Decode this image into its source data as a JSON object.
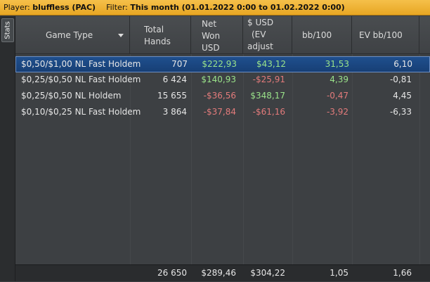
{
  "filter_bar": {
    "player_label": "Player:",
    "player_value": "bluffless (PAC)",
    "filter_label": "Filter:",
    "filter_value": "This month (01.01.2022 0:00 to 01.02.2022 0:00)"
  },
  "side_tabs": {
    "stats": "Stats"
  },
  "columns": {
    "game_type": "Game Type",
    "total_hands_1": "Total",
    "total_hands_2": "Hands",
    "net_won_1": "Net",
    "net_won_2": "Won",
    "net_won_3": "USD",
    "ev_usd_1": "$ USD",
    "ev_usd_2": "(EV",
    "ev_usd_3": "adjust",
    "bb100": "bb/100",
    "ev_bb100": "EV bb/100"
  },
  "rows": [
    {
      "game": "$0,50/$1,00 NL Fast Holdem",
      "hands": "707",
      "net_won": "$222,93",
      "ev_usd": "$43,12",
      "bb100": "31,53",
      "ev_bb100": "6,10"
    },
    {
      "game": "$0,25/$0,50 NL Fast Holdem",
      "hands": "6 424",
      "net_won": "$140,93",
      "ev_usd": "-$25,91",
      "bb100": "4,39",
      "ev_bb100": "-0,81"
    },
    {
      "game": "$0,25/$0,50 NL Holdem",
      "hands": "15 655",
      "net_won": "-$36,56",
      "ev_usd": "$348,17",
      "bb100": "-0,47",
      "ev_bb100": "4,45"
    },
    {
      "game": "$0,10/$0,25 NL Fast Holdem",
      "hands": "3 864",
      "net_won": "-$37,84",
      "ev_usd": "-$61,16",
      "bb100": "-3,92",
      "ev_bb100": "-6,33"
    }
  ],
  "totals": {
    "hands": "26 650",
    "net_won": "$289,46",
    "ev_usd": "$304,22",
    "bb100": "1,05",
    "ev_bb100": "1,66"
  },
  "colors": {
    "positive": "#9ae38a",
    "negative": "#e37b7b",
    "selected_row": "#1f4f8e",
    "filter_bar": "#f0b63a"
  },
  "icons": {
    "sort_dropdown": "caret-down-icon"
  }
}
